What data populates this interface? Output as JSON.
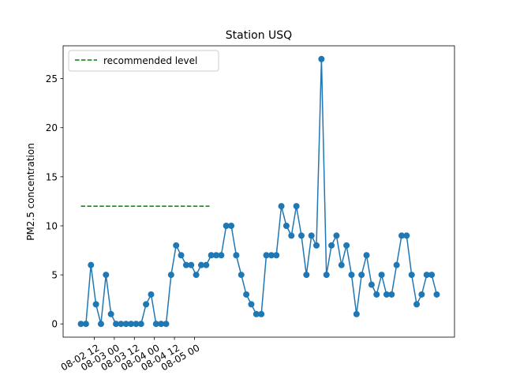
{
  "chart_data": {
    "type": "line",
    "title": "Station USQ",
    "xlabel": "",
    "ylabel": "PM2.5 concentration",
    "x_unit": "datetime",
    "x_start": "2018-08-02 04:00",
    "x_step_hours": 3,
    "x_ticks": [
      {
        "value": "2018-08-02 12:00",
        "label": "08-02 12"
      },
      {
        "value": "2018-08-03 00:00",
        "label": "08-03 00"
      },
      {
        "value": "2018-08-03 12:00",
        "label": "08-03 12"
      },
      {
        "value": "2018-08-04 00:00",
        "label": "08-04 00"
      },
      {
        "value": "2018-08-04 12:00",
        "label": "08-04 12"
      },
      {
        "value": "2018-08-05 00:00",
        "label": "08-05 00"
      }
    ],
    "ylim": [
      -1.35,
      28.35
    ],
    "y_ticks": [
      0,
      5,
      10,
      15,
      20,
      25
    ],
    "grid": false,
    "legend_position": "top-left",
    "series": [
      {
        "values": [
          0,
          0,
          6,
          2,
          0,
          5,
          1,
          0,
          0,
          0,
          0,
          0,
          0,
          2,
          3,
          0,
          0,
          0,
          5,
          8,
          7,
          6,
          6,
          5,
          6,
          6,
          7,
          7,
          7,
          10,
          10,
          7,
          5,
          3,
          2,
          1,
          1,
          7,
          7,
          7,
          12,
          10,
          9,
          12,
          9,
          5,
          9,
          8,
          27,
          5,
          8,
          9,
          6,
          8,
          5,
          1,
          5,
          7,
          4,
          3,
          5,
          3,
          3,
          6,
          9,
          9,
          5,
          2,
          3,
          5,
          5,
          3
        ],
        "color": "#1f77b4",
        "style": "line-with-markers"
      }
    ],
    "reference_lines": [
      {
        "name": "recommended level",
        "y": 12,
        "color": "#008000",
        "style": "dashed",
        "x_from": "2018-08-02 04:00",
        "x_to": "2018-08-05 09:00"
      }
    ]
  }
}
